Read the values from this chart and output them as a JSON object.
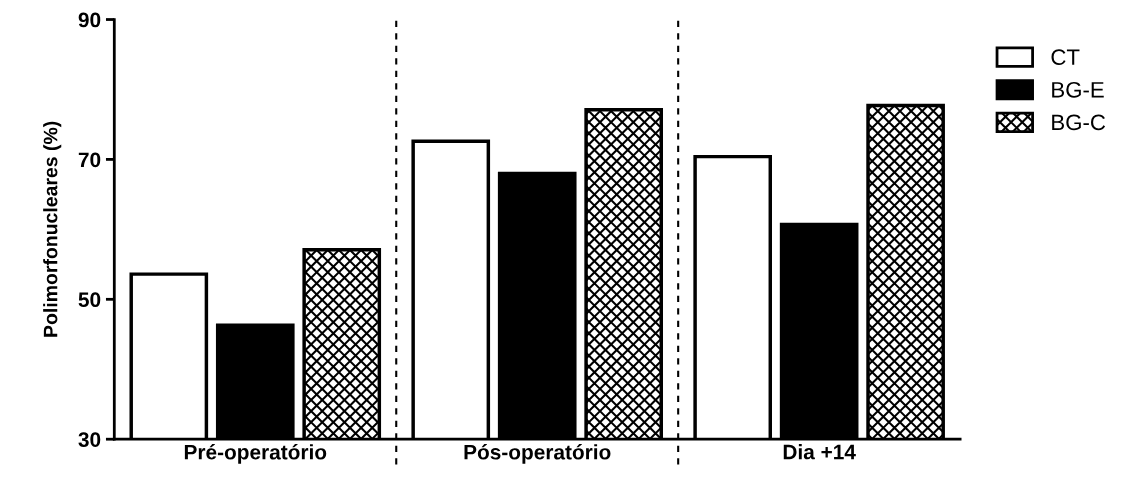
{
  "chart_data": {
    "type": "bar",
    "ylabel": "Polimorfonucleares (%)",
    "categories": [
      "Pré-operatório",
      "Pós-operatório",
      "Dia +14"
    ],
    "series": [
      {
        "name": "CT",
        "color": "#ffffff",
        "values": [
          53.6,
          72.6,
          70.4
        ]
      },
      {
        "name": "BG-E",
        "color": "#000000",
        "values": [
          46.3,
          68.0,
          60.7
        ]
      },
      {
        "name": "BG-C",
        "color": "#000000",
        "values": [
          57.1,
          77.1,
          77.7
        ]
      }
    ],
    "ylim": [
      30,
      90
    ],
    "yticks": [
      30,
      50,
      70,
      90
    ],
    "grid": false,
    "legend": "top right"
  }
}
